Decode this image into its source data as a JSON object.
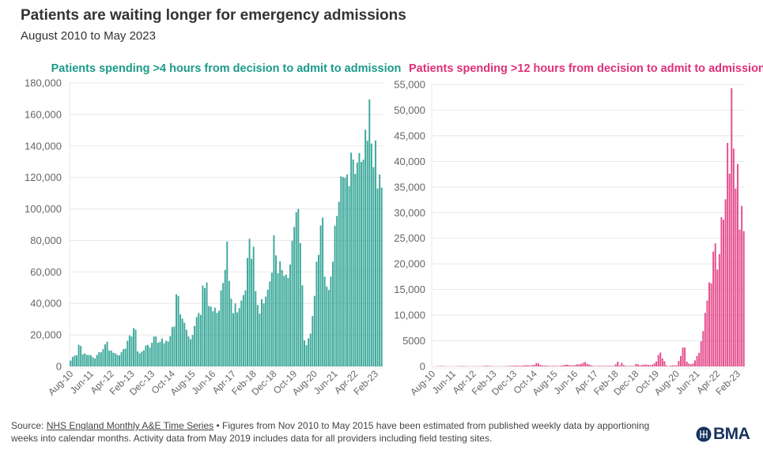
{
  "title": "Patients are waiting longer for emergency admissions",
  "subtitle": "August 2010 to May 2023",
  "footer": {
    "source_prefix": "Source: ",
    "source_link": "NHS England Monthly A&E Time Series",
    "note": " • Figures from Nov 2010 to May 2015 have been estimated from published weekly data by apportioning weeks into calendar months. Activity data from May 2019 includes data for all providers including field testing sites."
  },
  "logo": {
    "text": "BMA",
    "color": "#17325e"
  },
  "chart_data": [
    {
      "type": "bar",
      "title": "Patients spending >4 hours from decision to admit to admission",
      "color": "#1b9a8a",
      "ylim": [
        0,
        180000
      ],
      "yticks": [
        0,
        20000,
        40000,
        60000,
        80000,
        100000,
        120000,
        140000,
        160000,
        180000
      ],
      "ytick_labels": [
        "0",
        "20,000",
        "40,000",
        "60,000",
        "80,000",
        "100,000",
        "120,000",
        "140,000",
        "160,000",
        "180,000"
      ],
      "grid": true,
      "x_start": "Aug-10",
      "x_end": "May-23",
      "xtick_labels": [
        "Aug-10",
        "Jun-11",
        "Apr-12",
        "Feb-13",
        "Dec-13",
        "Oct-14",
        "Aug-15",
        "Jun-16",
        "Apr-17",
        "Feb-18",
        "Dec-18",
        "Oct-19",
        "Aug-20",
        "Jun-21",
        "Apr-22",
        "Feb-23"
      ],
      "xtick_every_months": 10,
      "values": [
        3700,
        6000,
        7000,
        7000,
        13700,
        13000,
        7700,
        8300,
        7300,
        7300,
        7000,
        5700,
        5000,
        7300,
        9000,
        9000,
        11000,
        14000,
        15700,
        10000,
        10000,
        8700,
        8300,
        7300,
        7000,
        9000,
        11000,
        11300,
        16300,
        19700,
        19000,
        24300,
        23300,
        9500,
        8300,
        9300,
        10300,
        13300,
        13700,
        12000,
        15000,
        19000,
        19000,
        15000,
        15700,
        17700,
        14700,
        16300,
        15700,
        19300,
        25000,
        25300,
        45800,
        44700,
        33000,
        30300,
        27700,
        23300,
        19000,
        17300,
        20000,
        25700,
        31300,
        34000,
        32700,
        51300,
        49700,
        53300,
        38300,
        38000,
        35000,
        37300,
        34000,
        35300,
        48300,
        53000,
        61300,
        79300,
        54300,
        43000,
        33800,
        40000,
        34300,
        37000,
        41800,
        45300,
        48300,
        68800,
        81000,
        68300,
        76000,
        47800,
        39000,
        33500,
        42700,
        40000,
        44300,
        48700,
        54000,
        59500,
        83200,
        70500,
        59200,
        66700,
        61200,
        57500,
        58300,
        56200,
        64700,
        79800,
        88500,
        98000,
        100000,
        78300,
        51500,
        16500,
        13500,
        17800,
        20800,
        32000,
        44800,
        66500,
        70800,
        89500,
        94500,
        57000,
        50700,
        48500,
        57000,
        66500,
        89300,
        95500,
        104500,
        120700,
        120200,
        119700,
        121800,
        114500,
        135700,
        131300,
        122200,
        129500,
        135500,
        129800,
        131300,
        150300,
        143300,
        169500,
        141500,
        126500,
        143500,
        113000,
        121800,
        113500
      ]
    },
    {
      "type": "bar",
      "title": "Patients spending >12 hours from decision to admit to admission",
      "color": "#e0307a",
      "ylim": [
        0,
        55000
      ],
      "yticks": [
        0,
        5000,
        10000,
        15000,
        20000,
        25000,
        30000,
        35000,
        40000,
        45000,
        50000,
        55000
      ],
      "ytick_labels": [
        "0",
        "5000",
        "10,000",
        "15,000",
        "20,000",
        "25,000",
        "30,000",
        "35,000",
        "40,000",
        "45,000",
        "50,000",
        "55,000"
      ],
      "grid": true,
      "x_start": "Aug-10",
      "x_end": "May-23",
      "xtick_labels": [
        "Aug-10",
        "Jun-11",
        "Apr-12",
        "Feb-13",
        "Dec-13",
        "Oct-14",
        "Aug-15",
        "Jun-16",
        "Apr-17",
        "Feb-18",
        "Dec-18",
        "Oct-19",
        "Aug-20",
        "Jun-21",
        "Apr-22",
        "Feb-23"
      ],
      "xtick_every_months": 10,
      "values": [
        0,
        0,
        30,
        50,
        80,
        60,
        40,
        30,
        20,
        20,
        20,
        30,
        40,
        50,
        60,
        80,
        60,
        40,
        30,
        20,
        20,
        30,
        40,
        30,
        50,
        80,
        120,
        100,
        80,
        60,
        50,
        40,
        30,
        30,
        40,
        50,
        60,
        80,
        100,
        120,
        150,
        150,
        150,
        120,
        150,
        200,
        250,
        200,
        150,
        250,
        300,
        650,
        560,
        300,
        200,
        150,
        150,
        120,
        100,
        100,
        120,
        100,
        80,
        150,
        200,
        300,
        350,
        250,
        200,
        180,
        250,
        400,
        400,
        500,
        700,
        870,
        500,
        350,
        200,
        100,
        80,
        80,
        100,
        100,
        100,
        100,
        100,
        100,
        100,
        100,
        400,
        920,
        200,
        700,
        250,
        100,
        100,
        100,
        100,
        100,
        500,
        400,
        200,
        300,
        350,
        350,
        300,
        250,
        350,
        600,
        970,
        2250,
        2700,
        1530,
        1020,
        200,
        50,
        150,
        200,
        200,
        200,
        1070,
        2040,
        3670,
        3670,
        920,
        560,
        400,
        560,
        1170,
        2040,
        2650,
        4900,
        6900,
        10450,
        12850,
        16400,
        16200,
        22400,
        24000,
        18900,
        21900,
        29100,
        28600,
        32600,
        43600,
        37600,
        54300,
        42500,
        34700,
        39500,
        26700,
        31300,
        26400
      ]
    }
  ]
}
